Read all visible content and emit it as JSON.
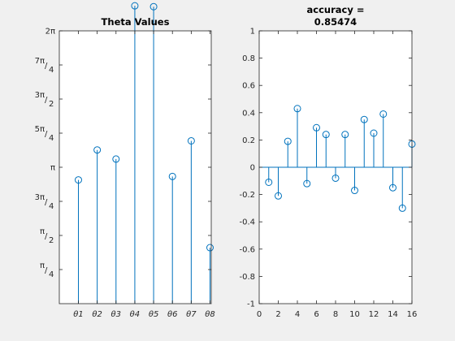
{
  "chart_data": [
    {
      "type": "stem",
      "title": "Theta Values",
      "xlabel": "",
      "ylabel": "",
      "categories": [
        "θ1",
        "θ2",
        "θ3",
        "θ4",
        "θ5",
        "θ6",
        "θ7",
        "θ8"
      ],
      "values": [
        2.85,
        3.54,
        3.33,
        6.86,
        6.84,
        2.93,
        3.75,
        1.29
      ],
      "ylim": [
        0,
        6.2832
      ],
      "yticks": [
        {
          "value": 0.7854,
          "num": "π",
          "den": "4"
        },
        {
          "value": 1.5708,
          "num": "π",
          "den": "2"
        },
        {
          "value": 2.3562,
          "num": "3π",
          "den": "4"
        },
        {
          "value": 3.1416,
          "num": "",
          "den": "",
          "text": "π"
        },
        {
          "value": 3.927,
          "num": "5π",
          "den": "4"
        },
        {
          "value": 4.7124,
          "num": "3π",
          "den": "2"
        },
        {
          "value": 5.4978,
          "num": "7π",
          "den": "4"
        },
        {
          "value": 6.2832,
          "num": "",
          "den": "",
          "text": "2π"
        }
      ],
      "color": "#0072bd"
    },
    {
      "type": "stem",
      "title_line1": "accuracy =",
      "title_line2": "0.85474",
      "xlabel": "",
      "ylabel": "",
      "x": [
        1,
        2,
        3,
        4,
        5,
        6,
        7,
        8,
        9,
        10,
        11,
        12,
        13,
        14,
        15,
        16
      ],
      "values": [
        -0.11,
        -0.21,
        0.19,
        0.43,
        -0.12,
        0.29,
        0.24,
        -0.08,
        0.24,
        -0.17,
        0.35,
        0.25,
        0.39,
        -0.15,
        -0.3,
        0.17
      ],
      "xlim": [
        0,
        16
      ],
      "ylim": [
        -1,
        1
      ],
      "xticks": [
        "0",
        "2",
        "4",
        "6",
        "8",
        "10",
        "12",
        "14",
        "16"
      ],
      "yticks": [
        "-1",
        "-0.8",
        "-0.6",
        "-0.4",
        "-0.2",
        "0",
        "0.2",
        "0.4",
        "0.6",
        "0.8",
        "1"
      ],
      "color": "#0072bd"
    }
  ]
}
